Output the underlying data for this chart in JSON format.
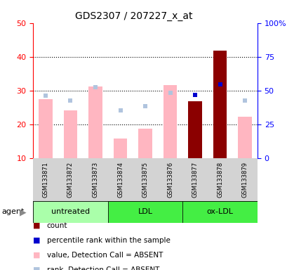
{
  "title": "GDS2307 / 207227_x_at",
  "samples": [
    "GSM133871",
    "GSM133872",
    "GSM133873",
    "GSM133874",
    "GSM133875",
    "GSM133876",
    "GSM133877",
    "GSM133878",
    "GSM133879"
  ],
  "value_absent": [
    27.5,
    24.0,
    31.2,
    15.8,
    18.7,
    31.5,
    null,
    null,
    22.3
  ],
  "rank_absent": [
    28.5,
    27.0,
    31.0,
    24.0,
    25.4,
    29.3,
    null,
    null,
    27.0
  ],
  "count_value": [
    null,
    null,
    null,
    null,
    null,
    null,
    26.8,
    41.8,
    null
  ],
  "rank_present": [
    null,
    null,
    null,
    null,
    null,
    null,
    28.6,
    31.7,
    null
  ],
  "ylim_left": [
    10,
    50
  ],
  "ylim_right": [
    0,
    100
  ],
  "yticks_left": [
    10,
    20,
    30,
    40,
    50
  ],
  "yticks_right": [
    0,
    25,
    50,
    75,
    100
  ],
  "ytick_labels_right": [
    "0",
    "25",
    "50",
    "75",
    "100%"
  ],
  "grid_lines": [
    20,
    30,
    40
  ],
  "color_count": "#8B0000",
  "color_rank_present": "#0000CD",
  "color_value_absent": "#FFB6C1",
  "color_rank_absent": "#B0C4DE",
  "color_label_box": "#D3D3D3",
  "color_group_untreated": "#AAFFAA",
  "color_group_ldl": "#44EE44",
  "color_group_oxldl": "#44EE44",
  "group_defs": [
    {
      "start": 0,
      "end": 2,
      "label": "untreated",
      "color": "#AAFFAA"
    },
    {
      "start": 3,
      "end": 5,
      "label": "LDL",
      "color": "#44EE44"
    },
    {
      "start": 6,
      "end": 8,
      "label": "ox-LDL",
      "color": "#44EE44"
    }
  ],
  "bar_width": 0.55,
  "background_color": "#ffffff",
  "legend_items": [
    {
      "color": "#8B0000",
      "label": "count"
    },
    {
      "color": "#0000CD",
      "label": "percentile rank within the sample"
    },
    {
      "color": "#FFB6C1",
      "label": "value, Detection Call = ABSENT"
    },
    {
      "color": "#B0C4DE",
      "label": "rank, Detection Call = ABSENT"
    }
  ]
}
